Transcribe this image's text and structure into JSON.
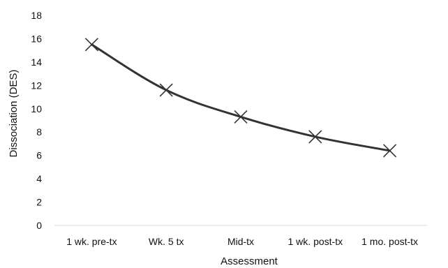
{
  "chart_data": {
    "type": "line",
    "title": "",
    "xlabel": "Assessment",
    "ylabel": "Dissociation (DES)",
    "categories": [
      "1 wk. pre-tx",
      "Wk. 5 tx",
      "Mid-tx",
      "1 wk. post-tx",
      "1 mo. post-tx"
    ],
    "series": [
      {
        "values": [
          15.5,
          11.6,
          9.3,
          7.6,
          6.4
        ],
        "color": "#333333",
        "marker": "x"
      }
    ],
    "ylim": [
      0,
      18
    ],
    "yticks": [
      0,
      2,
      4,
      6,
      8,
      10,
      12,
      14,
      16,
      18
    ],
    "grid": false,
    "legend": "none"
  }
}
